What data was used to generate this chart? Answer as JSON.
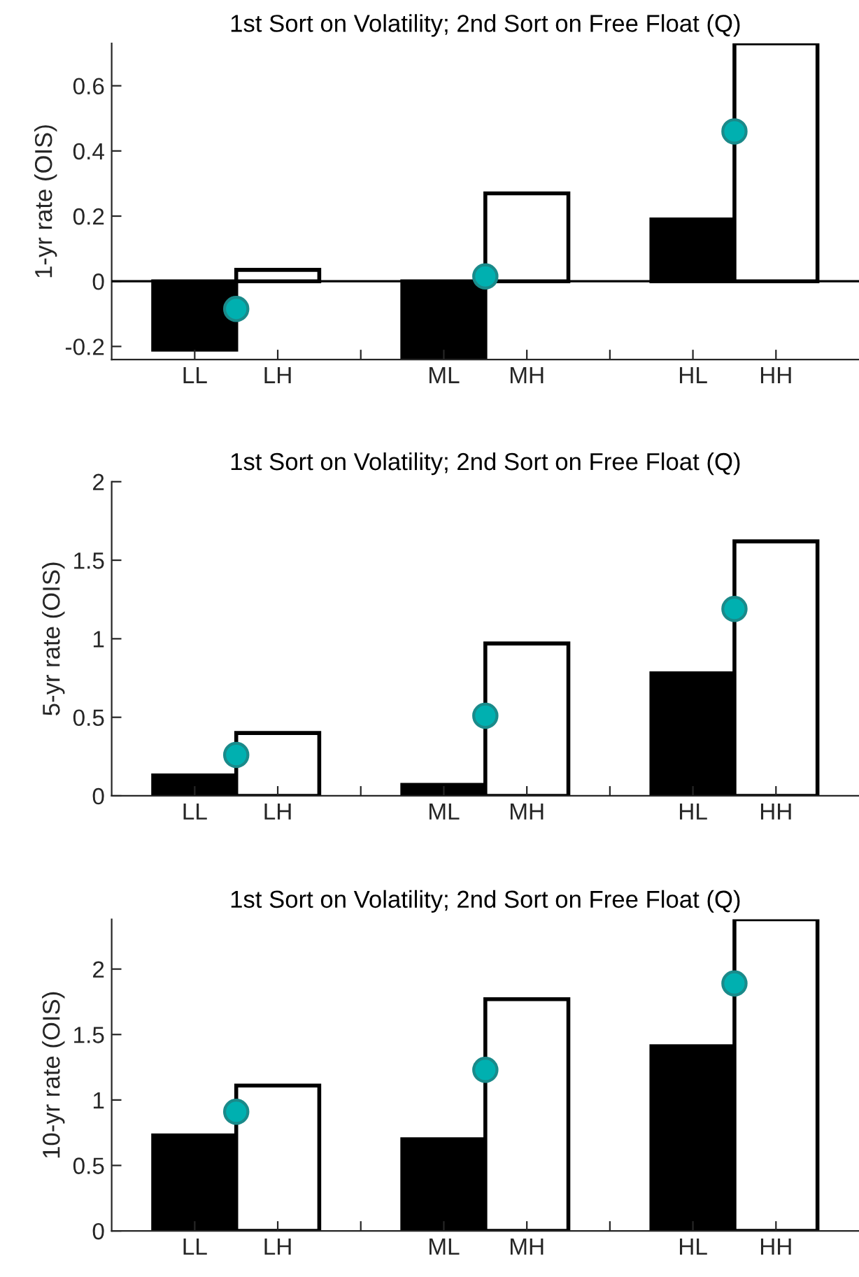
{
  "chart_data": [
    {
      "type": "bar",
      "title": "1st Sort on Volatility; 2nd Sort on Free Float (Q)",
      "ylabel": "1-yr rate (OIS)",
      "categories": [
        "LL",
        null,
        "LH",
        null,
        null,
        null,
        "ML",
        null,
        "MH",
        null,
        null,
        null,
        "HL",
        null,
        "HH"
      ],
      "ylim": [
        -0.24,
        0.73
      ],
      "yticks": [
        -0.2,
        0,
        0.2,
        0.4,
        0.6
      ],
      "ref_lines": [
        {
          "axis": "y",
          "value": 0,
          "color": "#000000"
        }
      ],
      "series": [
        {
          "color": "#000000",
          "values": [
            -0.21,
            null,
            null,
            null,
            null,
            null,
            -0.24,
            null,
            null,
            null,
            null,
            null,
            0.19,
            null,
            null
          ]
        },
        {
          "color": "#ffffff",
          "values": [
            null,
            null,
            0.035,
            null,
            null,
            null,
            null,
            null,
            0.27,
            null,
            null,
            null,
            null,
            null,
            0.73
          ]
        },
        {
          "type": "scatter",
          "marker": "circle",
          "color": "#00b0b0",
          "values": [
            null,
            -0.085,
            null,
            null,
            null,
            null,
            null,
            0.015,
            null,
            null,
            null,
            null,
            null,
            0.46,
            null
          ]
        }
      ]
    },
    {
      "type": "bar",
      "title": "1st Sort on Volatility; 2nd Sort on Free Float (Q)",
      "ylabel": "5-yr rate (OIS)",
      "categories": [
        "LL",
        null,
        "LH",
        null,
        null,
        null,
        "ML",
        null,
        "MH",
        null,
        null,
        null,
        "HL",
        null,
        "HH"
      ],
      "ylim": [
        0,
        2
      ],
      "yticks": [
        0,
        0.5,
        1,
        1.5,
        2
      ],
      "series": [
        {
          "color": "#000000",
          "values": [
            0.13,
            null,
            null,
            null,
            null,
            null,
            0.07,
            null,
            null,
            null,
            null,
            null,
            0.78,
            null,
            null
          ]
        },
        {
          "color": "#ffffff",
          "values": [
            null,
            null,
            0.4,
            null,
            null,
            null,
            null,
            null,
            0.97,
            null,
            null,
            null,
            null,
            null,
            1.62
          ]
        },
        {
          "type": "scatter",
          "marker": "circle",
          "color": "#00b0b0",
          "values": [
            null,
            0.26,
            null,
            null,
            null,
            null,
            null,
            0.51,
            null,
            null,
            null,
            null,
            null,
            1.19,
            null
          ]
        }
      ]
    },
    {
      "type": "bar",
      "title": "1st Sort on Volatility; 2nd Sort on Free Float (Q)",
      "ylabel": "10-yr rate (OIS)",
      "categories": [
        "LL",
        null,
        "LH",
        null,
        null,
        null,
        "ML",
        null,
        "MH",
        null,
        null,
        null,
        "HL",
        null,
        "HH"
      ],
      "ylim": [
        0,
        2.38
      ],
      "yticks": [
        0,
        0.5,
        1,
        1.5,
        2
      ],
      "series": [
        {
          "color": "#000000",
          "values": [
            0.73,
            null,
            null,
            null,
            null,
            null,
            0.7,
            null,
            null,
            null,
            null,
            null,
            1.41,
            null,
            null
          ]
        },
        {
          "color": "#ffffff",
          "values": [
            null,
            null,
            1.11,
            null,
            null,
            null,
            null,
            null,
            1.77,
            null,
            null,
            null,
            null,
            null,
            2.38
          ]
        },
        {
          "type": "scatter",
          "marker": "circle",
          "color": "#00b0b0",
          "values": [
            null,
            0.91,
            null,
            null,
            null,
            null,
            null,
            1.23,
            null,
            null,
            null,
            null,
            null,
            1.89,
            null
          ]
        }
      ]
    }
  ]
}
